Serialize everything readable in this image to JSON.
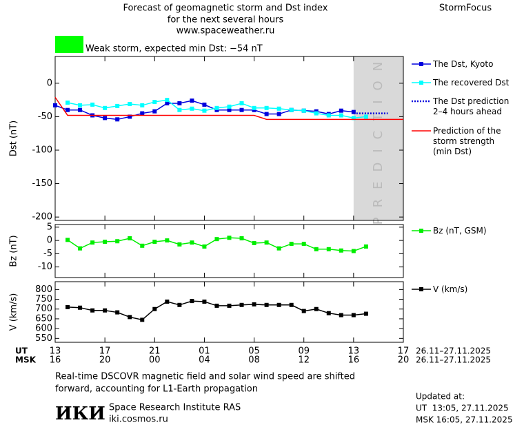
{
  "header": {
    "title_lines": [
      "Forecast of geomagnetic storm and Dst index",
      "for the next several hours",
      "www.spaceweather.ru"
    ],
    "brand": "StormFocus",
    "status": "Weak storm, expected min Dst: −54 nT",
    "status_color": "#00ff00"
  },
  "chart_data": [
    {
      "type": "line",
      "y_label": "Dst (nT)",
      "xlim": [
        0,
        28
      ],
      "xticks": [
        0,
        4,
        8,
        12,
        16,
        20,
        24,
        28
      ],
      "ylim": [
        -205,
        40
      ],
      "yticks": [
        0,
        -50,
        -100,
        -150,
        -200
      ],
      "shade": {
        "xlim": [
          24,
          28
        ],
        "label": "PREDICTION",
        "color": "#d9d9d9"
      },
      "series": [
        {
          "name": "The Dst, Kyoto",
          "color": "#0000dd",
          "marker": "square",
          "x": [
            0,
            1,
            2,
            3,
            4,
            5,
            6,
            7,
            8,
            9,
            10,
            11,
            12,
            13,
            14,
            15,
            16,
            17,
            18,
            19,
            20,
            21,
            22,
            23,
            24
          ],
          "values": [
            -33,
            -40,
            -40,
            -48,
            -52,
            -54,
            -50,
            -45,
            -42,
            -30,
            -30,
            -26,
            -32,
            -40,
            -40,
            -40,
            -40,
            -46,
            -46,
            -40,
            -41,
            -42,
            -46,
            -41,
            -43
          ]
        },
        {
          "name": "The recovered Dst",
          "color": "#00ffff",
          "marker": "square",
          "x": [
            1,
            2,
            3,
            4,
            5,
            6,
            7,
            8,
            9,
            10,
            11,
            12,
            13,
            14,
            15,
            16,
            17,
            18,
            19,
            20,
            21,
            22,
            23,
            24,
            25
          ],
          "values": [
            -29,
            -33,
            -32,
            -37,
            -34,
            -31,
            -33,
            -28,
            -25,
            -40,
            -38,
            -41,
            -37,
            -35,
            -30,
            -37,
            -37,
            -38,
            -40,
            -41,
            -45,
            -48,
            -48,
            -52,
            -50
          ]
        },
        {
          "name": "The Dst prediction\n2–4 hours ahead",
          "color": "#0000dd",
          "dash": true,
          "x": [
            24,
            26.75
          ],
          "values": [
            -45,
            -45
          ]
        },
        {
          "name": "Prediction of the\nstorm strength\n(min Dst)",
          "color": "#ff0000",
          "x": [
            0,
            1,
            16,
            17,
            28
          ],
          "values": [
            -21,
            -48,
            -48,
            -54,
            -54
          ]
        }
      ]
    },
    {
      "type": "line",
      "y_label": "Bz (nT)",
      "xlim": [
        0,
        28
      ],
      "xticks": [
        0,
        4,
        8,
        12,
        16,
        20,
        24,
        28
      ],
      "ylim": [
        -14,
        6
      ],
      "yticks": [
        5,
        0,
        -5,
        -10
      ],
      "series": [
        {
          "name": "Bz (nT, GSM)",
          "color": "#00ee00",
          "marker": "square",
          "x": [
            1,
            2,
            3,
            4,
            5,
            6,
            7,
            8,
            9,
            10,
            11,
            12,
            13,
            14,
            15,
            16,
            17,
            18,
            19,
            20,
            21,
            22,
            23,
            24,
            25
          ],
          "values": [
            0.2,
            -3,
            -0.8,
            -0.5,
            -0.3,
            0.8,
            -2,
            -0.5,
            0,
            -1.5,
            -0.8,
            -2.3,
            0.5,
            1,
            0.8,
            -1,
            -0.8,
            -3,
            -1.3,
            -1.3,
            -3.3,
            -3.3,
            -3.8,
            -4,
            -2.3
          ]
        }
      ]
    },
    {
      "type": "line",
      "y_label": "V (km/s)",
      "xlim": [
        0,
        28
      ],
      "xticks": [
        {
          "value": 0,
          "label": "13"
        },
        {
          "value": 4,
          "label": "17"
        },
        {
          "value": 8,
          "label": "21"
        },
        {
          "value": 12,
          "label": "01"
        },
        {
          "value": 16,
          "label": "05"
        },
        {
          "value": 20,
          "label": "09"
        },
        {
          "value": 24,
          "label": "13"
        },
        {
          "value": 28,
          "label": "17"
        }
      ],
      "xticks_msk": [
        "16",
        "20",
        "00",
        "04",
        "08",
        "12",
        "16",
        "20"
      ],
      "x_rows": [
        "UT",
        "MSK"
      ],
      "x_ranges": [
        "26.11–27.11.2025",
        "26.11–27.11.2025"
      ],
      "ylim": [
        530,
        840
      ],
      "yticks": [
        800,
        750,
        700,
        650,
        600,
        550
      ],
      "series": [
        {
          "name": "V (km/s)",
          "color": "#000000",
          "marker": "square",
          "x": [
            1,
            2,
            3,
            4,
            5,
            6,
            7,
            8,
            9,
            10,
            11,
            12,
            13,
            14,
            15,
            16,
            17,
            18,
            19,
            20,
            21,
            22,
            23,
            24,
            25
          ],
          "values": [
            710,
            707,
            693,
            693,
            683,
            659,
            645,
            700,
            738,
            721,
            741,
            738,
            717,
            717,
            721,
            724,
            721,
            721,
            721,
            690,
            700,
            679,
            669,
            669,
            676
          ]
        }
      ]
    }
  ],
  "footer": {
    "note_lines": [
      "Real-time DSCOVR magnetic field and solar wind speed are shifted",
      "forward, accounting for L1-Earth propagation"
    ],
    "logo": "ИКИ",
    "institute": "Space Research Institute RAS",
    "site": "iki.cosmos.ru",
    "updated_label": "Updated at:",
    "updated_ut": "UT  13:05, 27.11.2025",
    "updated_msk": "MSK 16:05, 27.11.2025"
  }
}
